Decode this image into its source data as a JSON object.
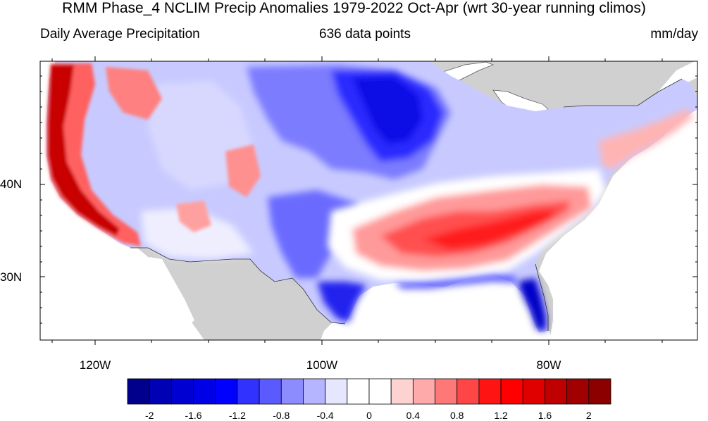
{
  "title": "RMM Phase_4 NCLIM Precip Anomalies 1979-2022 Oct-Apr (wrt 30-year running climos)",
  "subtitle_left": "Daily Average Precipitation",
  "subtitle_center": "636 data points",
  "subtitle_right": "mm/day",
  "map": {
    "lat_labels": [
      "40N",
      "30N"
    ],
    "lon_labels": [
      "120W",
      "100W",
      "80W"
    ],
    "land_color": "#d0d0d0",
    "ocean_color": "#ffffff"
  },
  "colorbar": {
    "labels": [
      "-2",
      "-1.6",
      "-1.2",
      "-0.8",
      "-0.4",
      "0",
      "0.4",
      "0.8",
      "1.2",
      "1.6",
      "2"
    ],
    "colors": [
      "#00008c",
      "#0000b4",
      "#0000d2",
      "#0000e6",
      "#0000ff",
      "#3232ff",
      "#5a5aff",
      "#8c8cff",
      "#b4b4ff",
      "#e6e6ff",
      "#ffffff",
      "#ffffff",
      "#ffd2d2",
      "#ffaaaa",
      "#ff7878",
      "#ff4646",
      "#ff1414",
      "#ff0000",
      "#e10000",
      "#be0000",
      "#a00000",
      "#8c0000"
    ]
  }
}
